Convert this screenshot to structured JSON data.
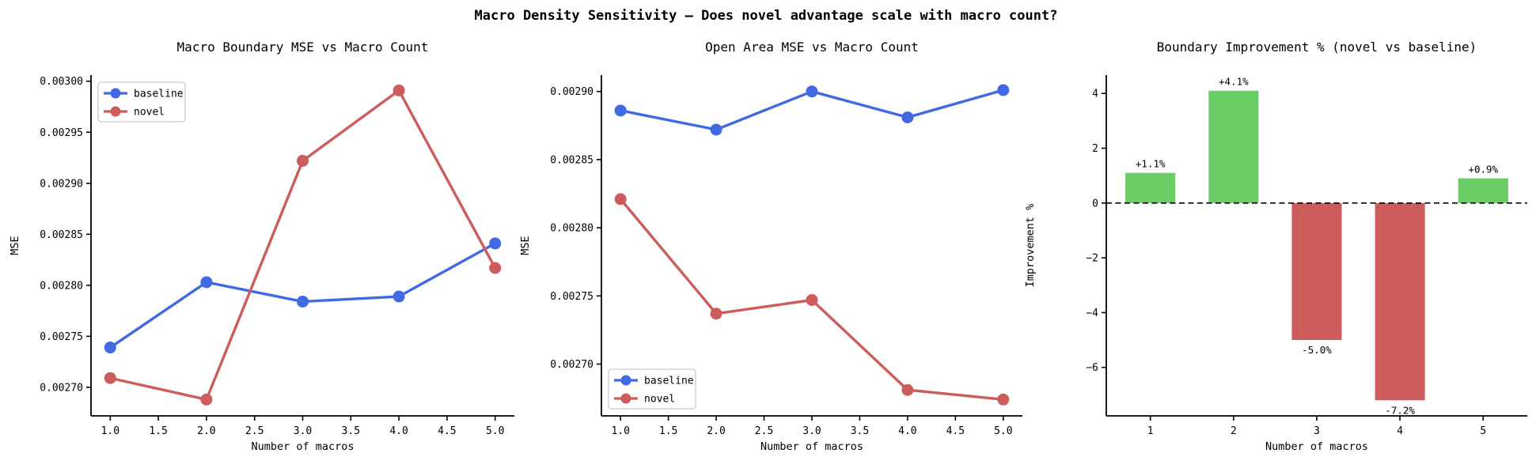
{
  "figure": {
    "title": "Macro Density Sensitivity — Does novel advantage scale with macro count?"
  },
  "colors": {
    "baseline": "#4169e1",
    "novel": "#cd5c5c",
    "positive_bar": "#6acc64",
    "negative_bar": "#cd5c5c",
    "axis": "#000000",
    "legend_border": "#c9c9c9"
  },
  "chart_data": [
    {
      "type": "line",
      "title": "Macro Boundary MSE vs Macro Count",
      "xlabel": "Number of macros",
      "ylabel": "MSE",
      "x": [
        1,
        2,
        3,
        4,
        5
      ],
      "series": [
        {
          "name": "baseline",
          "color_key": "baseline",
          "values": [
            0.002739,
            0.002803,
            0.002784,
            0.002789,
            0.002841
          ]
        },
        {
          "name": "novel",
          "color_key": "novel",
          "values": [
            0.002709,
            0.002688,
            0.002922,
            0.002991,
            0.002817
          ]
        }
      ],
      "xlim": [
        0.8,
        5.2
      ],
      "ylim": [
        0.002672,
        0.003006
      ],
      "xticks": [
        1.0,
        1.5,
        2.0,
        2.5,
        3.0,
        3.5,
        4.0,
        4.5,
        5.0
      ],
      "xtick_labels": [
        "1.0",
        "1.5",
        "2.0",
        "2.5",
        "3.0",
        "3.5",
        "4.0",
        "4.5",
        "5.0"
      ],
      "yticks": [
        0.0027,
        0.00275,
        0.0028,
        0.00285,
        0.0029,
        0.00295,
        0.003
      ],
      "ytick_labels": [
        "0.00270",
        "0.00275",
        "0.00280",
        "0.00285",
        "0.00290",
        "0.00295",
        "0.00300"
      ],
      "legend": {
        "position": "upper-left",
        "entries": [
          "baseline",
          "novel"
        ]
      },
      "grid": false
    },
    {
      "type": "line",
      "title": "Open Area MSE vs Macro Count",
      "xlabel": "Number of macros",
      "ylabel": "MSE",
      "x": [
        1,
        2,
        3,
        4,
        5
      ],
      "series": [
        {
          "name": "baseline",
          "color_key": "baseline",
          "values": [
            0.002886,
            0.002872,
            0.0029,
            0.002881,
            0.002901
          ]
        },
        {
          "name": "novel",
          "color_key": "novel",
          "values": [
            0.002821,
            0.002737,
            0.002747,
            0.002681,
            0.002674
          ]
        }
      ],
      "xlim": [
        0.8,
        5.2
      ],
      "ylim": [
        0.002662,
        0.002912
      ],
      "xticks": [
        1.0,
        1.5,
        2.0,
        2.5,
        3.0,
        3.5,
        4.0,
        4.5,
        5.0
      ],
      "xtick_labels": [
        "1.0",
        "1.5",
        "2.0",
        "2.5",
        "3.0",
        "3.5",
        "4.0",
        "4.5",
        "5.0"
      ],
      "yticks": [
        0.0027,
        0.00275,
        0.0028,
        0.00285,
        0.0029
      ],
      "ytick_labels": [
        "0.00270",
        "0.00275",
        "0.00280",
        "0.00285",
        "0.00290"
      ],
      "legend": {
        "position": "lower-left",
        "entries": [
          "baseline",
          "novel"
        ]
      },
      "grid": false
    },
    {
      "type": "bar",
      "title": "Boundary Improvement % (novel vs baseline)",
      "xlabel": "Number of macros",
      "ylabel": "Improvement %",
      "categories": [
        "1",
        "2",
        "3",
        "4",
        "5"
      ],
      "x": [
        1,
        2,
        3,
        4,
        5
      ],
      "values": [
        1.1,
        4.1,
        -5.0,
        -7.2,
        0.9
      ],
      "value_labels": [
        "+1.1%",
        "+4.1%",
        "-5.0%",
        "-7.2%",
        "+0.9%"
      ],
      "xlim": [
        0.47,
        5.53
      ],
      "ylim": [
        -7.77,
        4.67
      ],
      "xticks": [
        1,
        2,
        3,
        4,
        5
      ],
      "xtick_labels": [
        "1",
        "2",
        "3",
        "4",
        "5"
      ],
      "yticks": [
        4,
        2,
        0,
        -2,
        -4,
        -6
      ],
      "ytick_labels": [
        "4",
        "2",
        "0",
        "−2",
        "−4",
        "−6"
      ],
      "bar_width_frac": 0.6,
      "zero_line": true,
      "grid": false
    }
  ]
}
